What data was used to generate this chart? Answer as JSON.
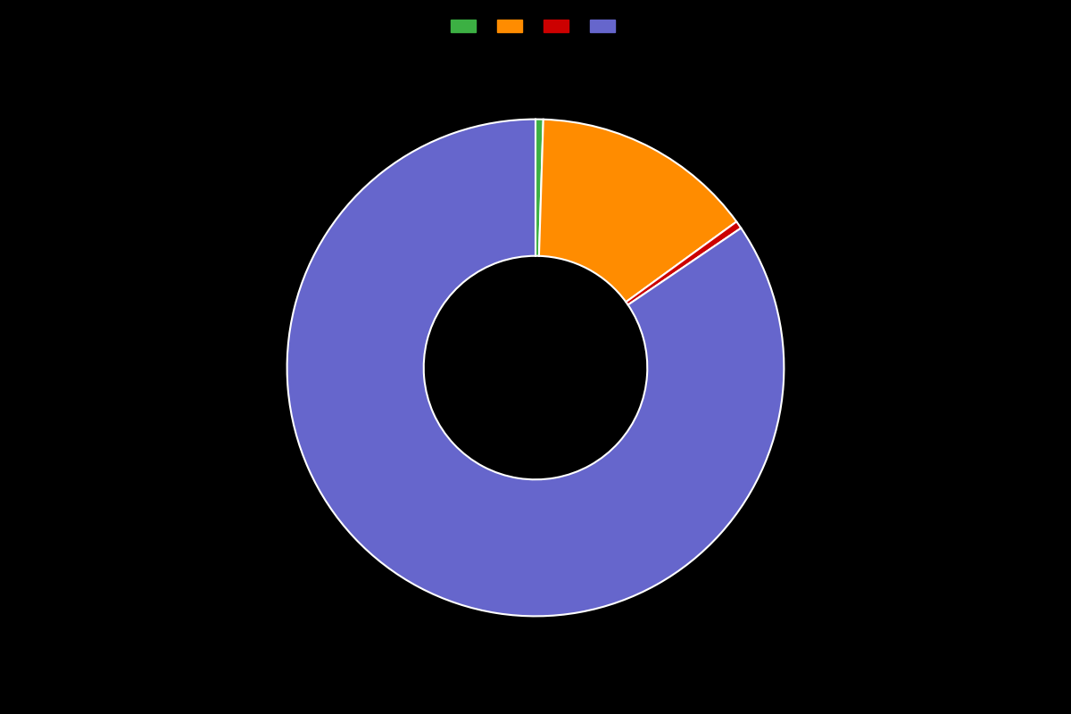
{
  "values": [
    0.5,
    14.5,
    0.5,
    84.5
  ],
  "colors": [
    "#3cb043",
    "#ff8c00",
    "#cc0000",
    "#6666cc"
  ],
  "legend_labels": [
    "",
    "",
    "",
    ""
  ],
  "background_color": "#000000",
  "donut_width": 0.55,
  "figsize": [
    12,
    8
  ],
  "dpi": 100
}
